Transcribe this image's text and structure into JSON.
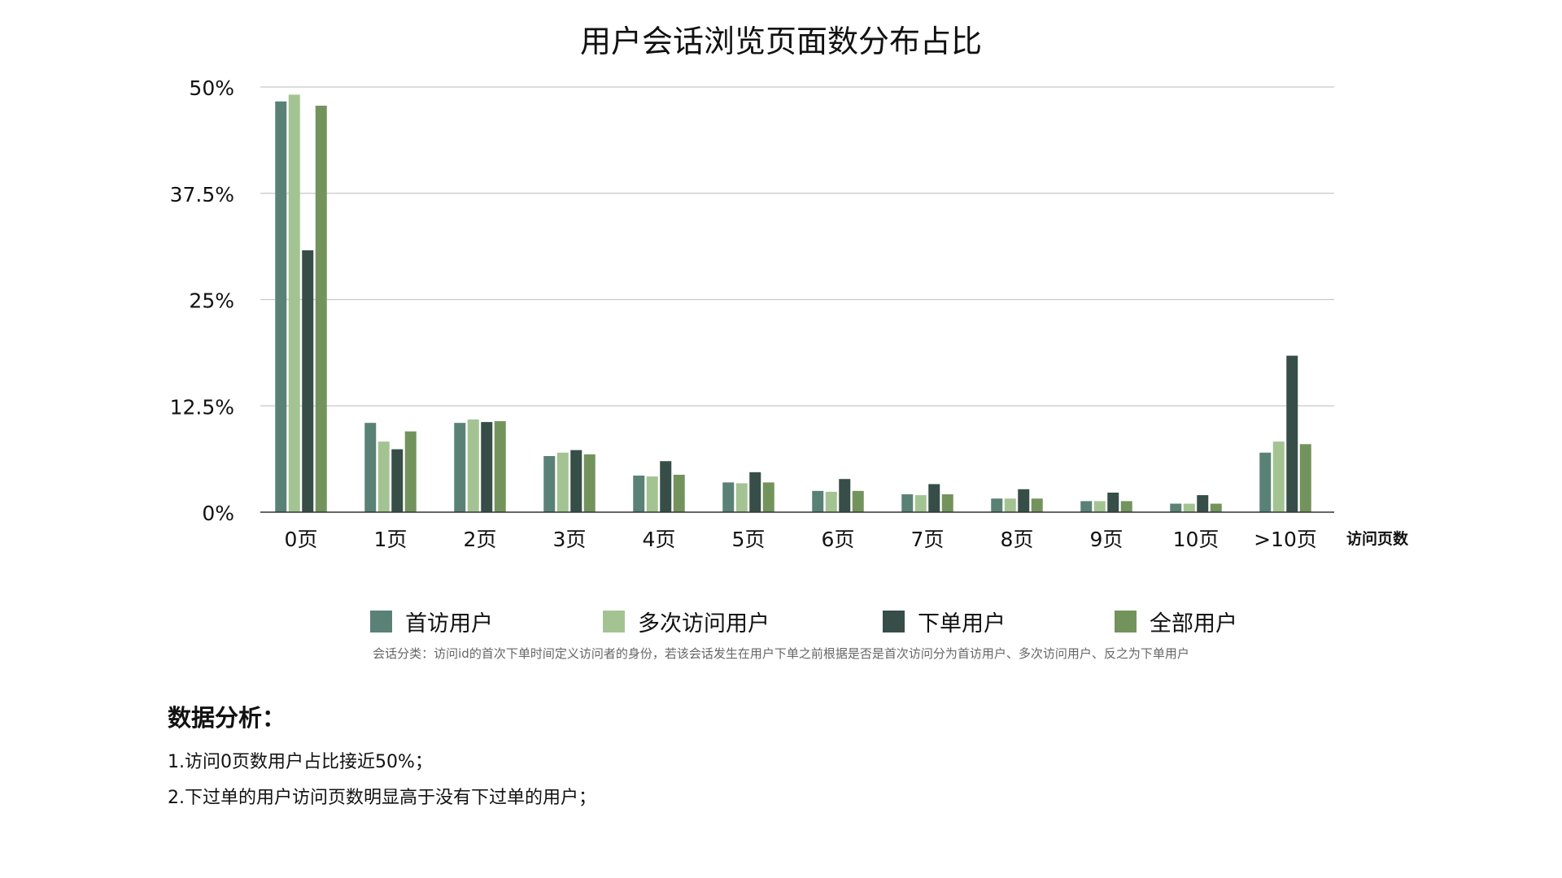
{
  "chart_data": {
    "type": "bar",
    "title": "用户会话浏览页面数分布占比",
    "xlabel": "访问页数",
    "ylabel": "",
    "ylim": [
      0,
      50
    ],
    "yticks": [
      0,
      12.5,
      25,
      37.5,
      50
    ],
    "ytick_labels": [
      "0%",
      "12.5%",
      "25%",
      "37.5%",
      "50%"
    ],
    "grid": true,
    "legend_position": "bottom",
    "categories": [
      "0页",
      "1页",
      "2页",
      "3页",
      "4页",
      "5页",
      "6页",
      "7页",
      "8页",
      "9页",
      "10页",
      ">10页"
    ],
    "series": [
      {
        "name": "首访用户",
        "color": "#5a8176",
        "values": [
          48.3,
          10.5,
          10.5,
          6.6,
          4.3,
          3.5,
          2.5,
          2.1,
          1.6,
          1.3,
          1.0,
          7.0
        ]
      },
      {
        "name": "多次访问用户",
        "color": "#a3c492",
        "values": [
          49.1,
          8.3,
          10.9,
          7.0,
          4.2,
          3.4,
          2.4,
          2.0,
          1.6,
          1.3,
          1.0,
          8.3
        ]
      },
      {
        "name": "下单用户",
        "color": "#364e47",
        "values": [
          30.8,
          7.4,
          10.6,
          7.3,
          6.0,
          4.7,
          3.9,
          3.3,
          2.7,
          2.3,
          2.0,
          18.4
        ]
      },
      {
        "name": "全部用户",
        "color": "#73935d",
        "values": [
          47.8,
          9.5,
          10.7,
          6.8,
          4.4,
          3.5,
          2.5,
          2.1,
          1.6,
          1.3,
          1.0,
          8.0
        ]
      }
    ]
  },
  "footnote": "会话分类：访问id的首次下单时间定义访问者的身份，若该会话发生在用户下单之前根据是否是首次访问分为首访用户、多次访问用户、反之为下单用户",
  "analysis": {
    "title": "数据分析：",
    "lines": [
      "1.访问0页数用户占比接近50%；",
      "2.下过单的用户访问页数明显高于没有下过单的用户；"
    ]
  }
}
